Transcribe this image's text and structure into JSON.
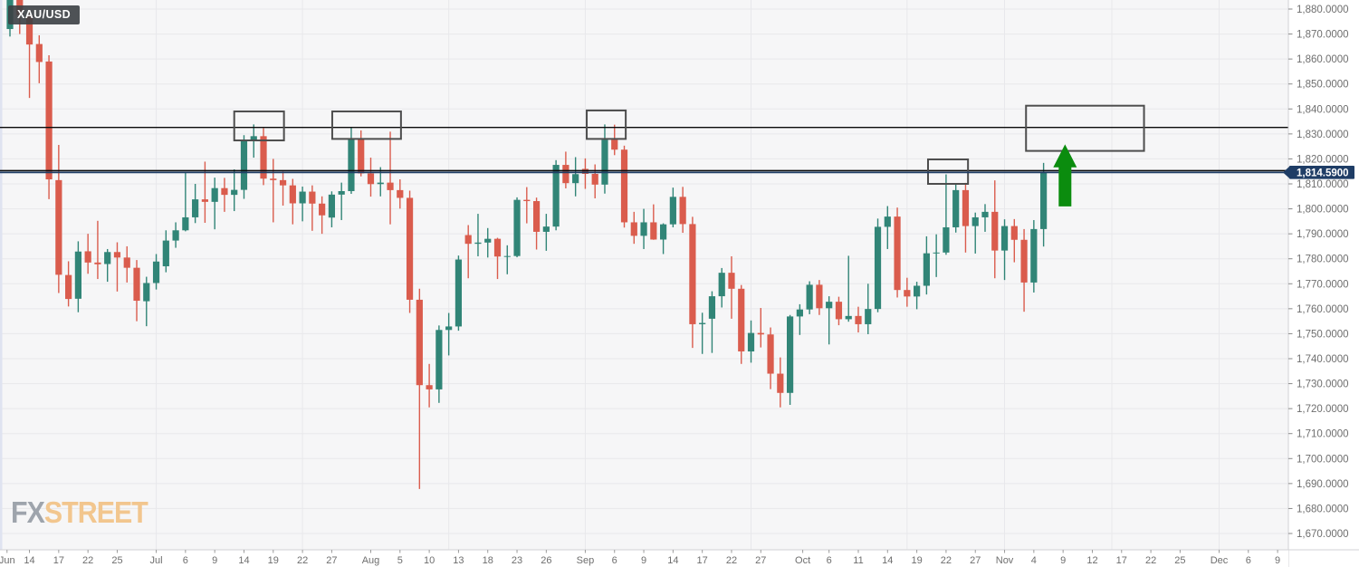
{
  "symbol_badge": "XAU/USD",
  "watermark": {
    "fx": "FX",
    "street": "STREET"
  },
  "price_label": "1,814.5900",
  "colors": {
    "up": "#318577",
    "down": "#da5c4d",
    "background": "#f6f6f7",
    "grid": "#e8e8eb",
    "axis_bg": "#ffffff",
    "axis_border": "#d2d2d6",
    "axis_text": "#6e6e6e",
    "level_line": "#0b0b0b",
    "price_line": "#1f3d66",
    "price_label_bg": "#1f3d66",
    "price_label_text": "#ffffff",
    "annotation_box": "#4d4d4d",
    "arrow": "#0b8c0e",
    "left_strip": "#dfe3f0"
  },
  "chart_data": {
    "type": "candlestick",
    "symbol": "XAU/USD",
    "title": "XAU/USD daily candlestick chart",
    "current_price": 1814.59,
    "current_price_label": "1,814.5900",
    "y_axis": {
      "min": 1670,
      "max": 1880,
      "step": 10,
      "tick_values": [
        1880,
        1870,
        1860,
        1850,
        1840,
        1830,
        1820,
        1810,
        1800,
        1790,
        1780,
        1770,
        1760,
        1750,
        1740,
        1730,
        1720,
        1710,
        1700,
        1690,
        1680,
        1670
      ],
      "tick_format": "#,##0.0000",
      "grid": true,
      "position": "right"
    },
    "x_ticks": [
      {
        "label": "Jun",
        "i": -0.3
      },
      {
        "label": "14",
        "i": 2
      },
      {
        "label": "17",
        "i": 5
      },
      {
        "label": "22",
        "i": 8
      },
      {
        "label": "25",
        "i": 11
      },
      {
        "label": "Jul",
        "i": 15
      },
      {
        "label": "6",
        "i": 18
      },
      {
        "label": "9",
        "i": 21
      },
      {
        "label": "14",
        "i": 24
      },
      {
        "label": "19",
        "i": 27
      },
      {
        "label": "22",
        "i": 30
      },
      {
        "label": "27",
        "i": 33
      },
      {
        "label": "Aug",
        "i": 37
      },
      {
        "label": "5",
        "i": 40
      },
      {
        "label": "10",
        "i": 43
      },
      {
        "label": "13",
        "i": 46
      },
      {
        "label": "18",
        "i": 49
      },
      {
        "label": "23",
        "i": 52
      },
      {
        "label": "26",
        "i": 55
      },
      {
        "label": "Sep",
        "i": 59
      },
      {
        "label": "6",
        "i": 62
      },
      {
        "label": "9",
        "i": 65
      },
      {
        "label": "14",
        "i": 68
      },
      {
        "label": "17",
        "i": 71
      },
      {
        "label": "22",
        "i": 74
      },
      {
        "label": "27",
        "i": 77
      },
      {
        "label": "Oct",
        "i": 81.3
      },
      {
        "label": "6",
        "i": 84
      },
      {
        "label": "11",
        "i": 87
      },
      {
        "label": "14",
        "i": 90
      },
      {
        "label": "19",
        "i": 93
      },
      {
        "label": "22",
        "i": 96
      },
      {
        "label": "27",
        "i": 99
      },
      {
        "label": "Nov",
        "i": 102
      },
      {
        "label": "4",
        "i": 105
      },
      {
        "label": "9",
        "i": 108
      },
      {
        "label": "12",
        "i": 111
      },
      {
        "label": "17",
        "i": 114
      },
      {
        "label": "22",
        "i": 117
      },
      {
        "label": "25",
        "i": 120
      },
      {
        "label": "Dec",
        "i": 124
      },
      {
        "label": "6",
        "i": 127
      },
      {
        "label": "9",
        "i": 130
      }
    ],
    "candles": [
      [
        1872,
        1886,
        1869,
        1884
      ],
      [
        1898,
        1903,
        1870,
        1877.5
      ],
      [
        1877.5,
        1878.6,
        1844.4,
        1865.8
      ],
      [
        1866,
        1869.5,
        1850.3,
        1858.8
      ],
      [
        1859,
        1861.5,
        1803.9,
        1811.8
      ],
      [
        1811.5,
        1825.6,
        1766.3,
        1773.6
      ],
      [
        1773.5,
        1779,
        1760.9,
        1763.9
      ],
      [
        1764,
        1787,
        1758.6,
        1782.9
      ],
      [
        1783,
        1790,
        1774,
        1778.5
      ],
      [
        1778.5,
        1795.2,
        1771.9,
        1777.8
      ],
      [
        1777.9,
        1783.9,
        1770.8,
        1782.7
      ],
      [
        1782.7,
        1786.6,
        1766.9,
        1780.5
      ],
      [
        1780.5,
        1785,
        1770.5,
        1776.4
      ],
      [
        1776.4,
        1779.5,
        1755,
        1763.2
      ],
      [
        1763,
        1772.8,
        1753,
        1770.3
      ],
      [
        1770.3,
        1781.9,
        1767.7,
        1778.9
      ],
      [
        1777,
        1791.4,
        1774.6,
        1787.3
      ],
      [
        1787.3,
        1794.6,
        1784.4,
        1791.4
      ],
      [
        1791.4,
        1814.8,
        1791,
        1796.6
      ],
      [
        1796.6,
        1810,
        1794.3,
        1803.8
      ],
      [
        1803.8,
        1818.9,
        1794.4,
        1802.8
      ],
      [
        1802.8,
        1812.5,
        1791.8,
        1808.3
      ],
      [
        1808.3,
        1812.4,
        1798.8,
        1805.6
      ],
      [
        1805.6,
        1815.8,
        1799.1,
        1807.6
      ],
      [
        1807.6,
        1829.5,
        1804,
        1827.1
      ],
      [
        1827.1,
        1833.8,
        1820.5,
        1829.1
      ],
      [
        1829.1,
        1832.3,
        1809.5,
        1812.1
      ],
      [
        1812.1,
        1820,
        1794.6,
        1811.5
      ],
      [
        1811.5,
        1815,
        1801.3,
        1809.4
      ],
      [
        1809.4,
        1812,
        1793.8,
        1802.2
      ],
      [
        1802.2,
        1808.9,
        1795,
        1806.9
      ],
      [
        1806.9,
        1809.4,
        1791.2,
        1802.1
      ],
      [
        1802.1,
        1805,
        1790,
        1797.4
      ],
      [
        1796.5,
        1807,
        1792.6,
        1805.7
      ],
      [
        1805.7,
        1810.5,
        1795.5,
        1807.1
      ],
      [
        1807.1,
        1832.5,
        1806,
        1828.2
      ],
      [
        1828.2,
        1831.4,
        1813,
        1814.2
      ],
      [
        1814.2,
        1820.5,
        1804.9,
        1809.9
      ],
      [
        1809.9,
        1816.7,
        1805,
        1810.5
      ],
      [
        1810.5,
        1830.9,
        1793.8,
        1807.5
      ],
      [
        1807.5,
        1811.8,
        1800.1,
        1804.4
      ],
      [
        1804.4,
        1807.3,
        1758.3,
        1763.6
      ],
      [
        1763.6,
        1768,
        1687.8,
        1729.4
      ],
      [
        1729.4,
        1737.9,
        1720.5,
        1727.7
      ],
      [
        1727.7,
        1753.3,
        1722.3,
        1751.5
      ],
      [
        1751.5,
        1758.3,
        1741.3,
        1752.9
      ],
      [
        1752.9,
        1781.3,
        1751.2,
        1779.7
      ],
      [
        1789.5,
        1793.5,
        1772.2,
        1786
      ],
      [
        1786,
        1798,
        1781,
        1786.5
      ],
      [
        1786.5,
        1792.3,
        1780.5,
        1788
      ],
      [
        1788,
        1788.4,
        1771.9,
        1780.9
      ],
      [
        1780.9,
        1785.4,
        1773.8,
        1781.1
      ],
      [
        1781.1,
        1804.6,
        1780.6,
        1803.6
      ],
      [
        1803.6,
        1808.7,
        1794.2,
        1803.1
      ],
      [
        1803.1,
        1804.5,
        1783.7,
        1790.8
      ],
      [
        1790.8,
        1798,
        1783.2,
        1792.9
      ],
      [
        1792.9,
        1819.5,
        1791.4,
        1817.6
      ],
      [
        1817.6,
        1822.9,
        1808.2,
        1810.3
      ],
      [
        1810.3,
        1820.7,
        1805,
        1813.9
      ],
      [
        1816,
        1820.2,
        1808,
        1814
      ],
      [
        1814,
        1817.8,
        1804.2,
        1809.7
      ],
      [
        1809.7,
        1833.8,
        1806.1,
        1827.7
      ],
      [
        1827.7,
        1833.7,
        1821.5,
        1823.7
      ],
      [
        1823.7,
        1825.3,
        1792.5,
        1794.6
      ],
      [
        1794.6,
        1798.8,
        1786,
        1789.2
      ],
      [
        1789.2,
        1800,
        1783.9,
        1794.6
      ],
      [
        1794.6,
        1801.8,
        1787.6,
        1787.7
      ],
      [
        1787.7,
        1794.2,
        1781.9,
        1793.8
      ],
      [
        1793.8,
        1808.5,
        1792.6,
        1804.8
      ],
      [
        1804.8,
        1808.8,
        1790.4,
        1793.9
      ],
      [
        1793.9,
        1796.8,
        1744.3,
        1753.8
      ],
      [
        1753.8,
        1758.4,
        1741.9,
        1754.3
      ],
      [
        1756,
        1767,
        1742.3,
        1765
      ],
      [
        1765,
        1776.3,
        1760.5,
        1774.4
      ],
      [
        1774.4,
        1781,
        1756,
        1768
      ],
      [
        1768,
        1769.5,
        1737.9,
        1742.9
      ],
      [
        1742.9,
        1755.3,
        1738.4,
        1750.3
      ],
      [
        1750.3,
        1760.3,
        1744.5,
        1749.7
      ],
      [
        1749.7,
        1752.5,
        1727.8,
        1734
      ],
      [
        1734,
        1740.5,
        1720.5,
        1726.3
      ],
      [
        1726.3,
        1757.5,
        1721.5,
        1756.9
      ],
      [
        1756.9,
        1761.8,
        1749.5,
        1759.7
      ],
      [
        1759.7,
        1771,
        1757.8,
        1769.6
      ],
      [
        1769.6,
        1771.5,
        1757.5,
        1760.2
      ],
      [
        1760.2,
        1765,
        1745.7,
        1762.8
      ],
      [
        1762.8,
        1764.8,
        1753.4,
        1755.8
      ],
      [
        1755.8,
        1781.2,
        1754.8,
        1757.1
      ],
      [
        1757.1,
        1760.8,
        1750.5,
        1753.8
      ],
      [
        1753.8,
        1770,
        1749.8,
        1759.9
      ],
      [
        1759.9,
        1796.1,
        1758.6,
        1792.8
      ],
      [
        1792.8,
        1801.1,
        1783.9,
        1796.9
      ],
      [
        1796.9,
        1800.5,
        1764.5,
        1767.5
      ],
      [
        1767.5,
        1772.4,
        1760.8,
        1764.9
      ],
      [
        1764.9,
        1770.8,
        1759.8,
        1769.2
      ],
      [
        1769.2,
        1789,
        1765.7,
        1782.2
      ],
      [
        1782.2,
        1789.8,
        1772.7,
        1782.5
      ],
      [
        1782.5,
        1813.8,
        1781.6,
        1792.6
      ],
      [
        1792.6,
        1809.8,
        1790.5,
        1807.5
      ],
      [
        1807.5,
        1810.4,
        1782.5,
        1793.1
      ],
      [
        1793.1,
        1798.5,
        1782.1,
        1796.6
      ],
      [
        1796.6,
        1801.9,
        1790.8,
        1798.8
      ],
      [
        1798.8,
        1811.4,
        1772.2,
        1783.3
      ],
      [
        1783.3,
        1795.8,
        1771.5,
        1793.1
      ],
      [
        1793.1,
        1795.9,
        1778.6,
        1787.6
      ],
      [
        1787.6,
        1791.9,
        1758.8,
        1770.5
      ],
      [
        1770.5,
        1795.5,
        1766.5,
        1791.9
      ],
      [
        1791.9,
        1818.4,
        1784.9,
        1814.59
      ]
    ],
    "level_lines": [
      {
        "price": 1832.6,
        "style": "solid",
        "color": "black"
      },
      {
        "price": 1815.3,
        "style": "solid",
        "color": "black"
      }
    ],
    "current_price_line": {
      "price": 1814.59,
      "color": "navy"
    },
    "resistance_boxes": [
      {
        "i1": 23.0,
        "i2": 28.1,
        "price_top": 1839.0,
        "price_bottom": 1827.4
      },
      {
        "i1": 33.05,
        "i2": 40.1,
        "price_top": 1839.0,
        "price_bottom": 1828.0
      },
      {
        "i1": 59.15,
        "i2": 63.15,
        "price_top": 1839.4,
        "price_bottom": 1828.0
      },
      {
        "i1": 94.15,
        "i2": 98.25,
        "price_top": 1819.8,
        "price_bottom": 1810.0
      },
      {
        "i1": 104.2,
        "i2": 116.3,
        "price_top": 1841.3,
        "price_bottom": 1823.2
      }
    ],
    "arrow_annotation": {
      "direction": "up",
      "i_center": 108.2,
      "price_tip": 1825.8,
      "price_head_base": 1816.6,
      "price_tail": 1801.0
    },
    "legend": "none",
    "v_grid_indices": [
      15,
      30,
      45,
      59,
      76,
      92,
      102,
      113,
      124
    ]
  }
}
